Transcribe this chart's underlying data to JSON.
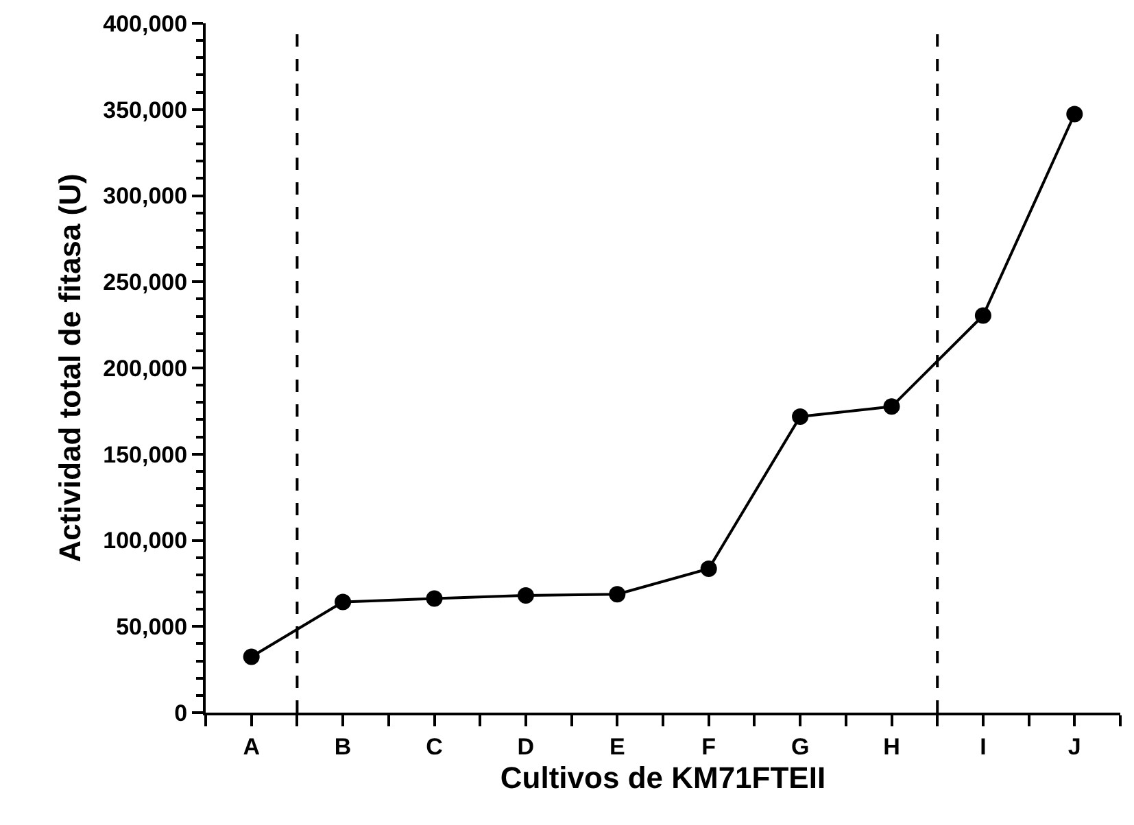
{
  "chart_data": {
    "type": "line",
    "xlabel": "Cultivos de KM71FTEII",
    "ylabel": "Actividad total de fitasa (U)",
    "categories": [
      "A",
      "B",
      "C",
      "D",
      "E",
      "F",
      "G",
      "H",
      "I",
      "J"
    ],
    "series": [
      {
        "color": "#000000",
        "values": [
          32400,
          64200,
          66200,
          68000,
          68700,
          83500,
          171800,
          177600,
          230400,
          347300
        ]
      }
    ],
    "ylim": [
      0,
      400000
    ],
    "yticks": [
      {
        "value": 0,
        "label": "0"
      },
      {
        "value": 50000,
        "label": "50,000"
      },
      {
        "value": 100000,
        "label": "100,000"
      },
      {
        "value": 150000,
        "label": "150,000"
      },
      {
        "value": 200000,
        "label": "200,000"
      },
      {
        "value": 250000,
        "label": "250,000"
      },
      {
        "value": 300000,
        "label": "300,000"
      },
      {
        "value": 350000,
        "label": "350,000"
      },
      {
        "value": 400000,
        "label": "400,000"
      }
    ],
    "grid": false,
    "marker": "circle",
    "line_style": "solid"
  }
}
